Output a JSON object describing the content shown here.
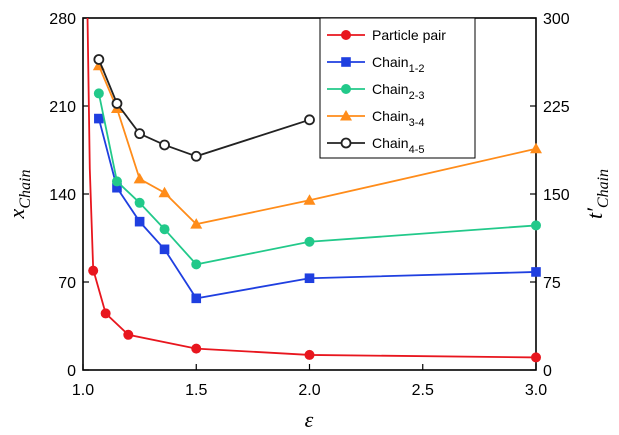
{
  "chart_data": {
    "type": "line",
    "xlabel": "ε",
    "ylabel_left": {
      "main": "x",
      "sub": "Chain"
    },
    "ylabel_right": {
      "main": "t′",
      "sub": "Chain"
    },
    "xlim": [
      1.0,
      3.0
    ],
    "ylim_left": [
      0,
      280
    ],
    "ylim_right": [
      0,
      300
    ],
    "x_ticks": [
      {
        "value": 1.0,
        "label": "1.0"
      },
      {
        "value": 1.5,
        "label": "1.5"
      },
      {
        "value": 2.0,
        "label": "2.0"
      },
      {
        "value": 2.5,
        "label": "2.5"
      },
      {
        "value": 3.0,
        "label": "3.0"
      }
    ],
    "y_ticks_left": [
      {
        "value": 0,
        "label": "0"
      },
      {
        "value": 70,
        "label": "70"
      },
      {
        "value": 140,
        "label": "140"
      },
      {
        "value": 210,
        "label": "210"
      },
      {
        "value": 280,
        "label": "280"
      }
    ],
    "y_ticks_right": [
      {
        "value": 0,
        "label": "0"
      },
      {
        "value": 75,
        "label": "75"
      },
      {
        "value": 150,
        "label": "150"
      },
      {
        "value": 225,
        "label": "225"
      },
      {
        "value": 300,
        "label": "300"
      }
    ],
    "grid": false,
    "legend_position": "top-right",
    "series": [
      {
        "name": "Particle pair",
        "name_main": "Particle pair",
        "name_sub": "",
        "color": "#e8161e",
        "marker": "circle-filled",
        "curve_lead": [
          [
            1.02,
            285
          ],
          [
            1.03,
            160
          ],
          [
            1.045,
            80
          ]
        ],
        "points": [
          [
            1.045,
            79
          ],
          [
            1.1,
            45
          ],
          [
            1.2,
            28
          ],
          [
            1.5,
            17
          ],
          [
            2.0,
            12
          ],
          [
            3.0,
            10
          ]
        ]
      },
      {
        "name": "Chain1-2",
        "name_main": "Chain",
        "name_sub": "1-2",
        "color": "#1f3fe0",
        "marker": "square-filled",
        "points": [
          [
            1.07,
            200
          ],
          [
            1.15,
            145
          ],
          [
            1.25,
            118
          ],
          [
            1.36,
            96
          ],
          [
            1.5,
            57
          ],
          [
            2.0,
            73
          ],
          [
            3.0,
            78
          ]
        ]
      },
      {
        "name": "Chain2-3",
        "name_main": "Chain",
        "name_sub": "2-3",
        "color": "#22c98a",
        "marker": "circle-filled",
        "points": [
          [
            1.07,
            220
          ],
          [
            1.15,
            150
          ],
          [
            1.25,
            133
          ],
          [
            1.36,
            112
          ],
          [
            1.5,
            84
          ],
          [
            2.0,
            102
          ],
          [
            3.0,
            115
          ]
        ]
      },
      {
        "name": "Chain3-4",
        "name_main": "Chain",
        "name_sub": "3-4",
        "color": "#ff8c1a",
        "marker": "triangle-filled",
        "points": [
          [
            1.07,
            242
          ],
          [
            1.15,
            208
          ],
          [
            1.25,
            152
          ],
          [
            1.36,
            141
          ],
          [
            1.5,
            116
          ],
          [
            2.0,
            135
          ],
          [
            3.0,
            176
          ]
        ]
      },
      {
        "name": "Chain4-5",
        "name_main": "Chain",
        "name_sub": "4-5",
        "color": "#222222",
        "marker": "circle-open",
        "points": [
          [
            1.07,
            247
          ],
          [
            1.15,
            212
          ],
          [
            1.25,
            188
          ],
          [
            1.36,
            179
          ],
          [
            1.5,
            170
          ],
          [
            2.0,
            199
          ]
        ]
      }
    ]
  }
}
